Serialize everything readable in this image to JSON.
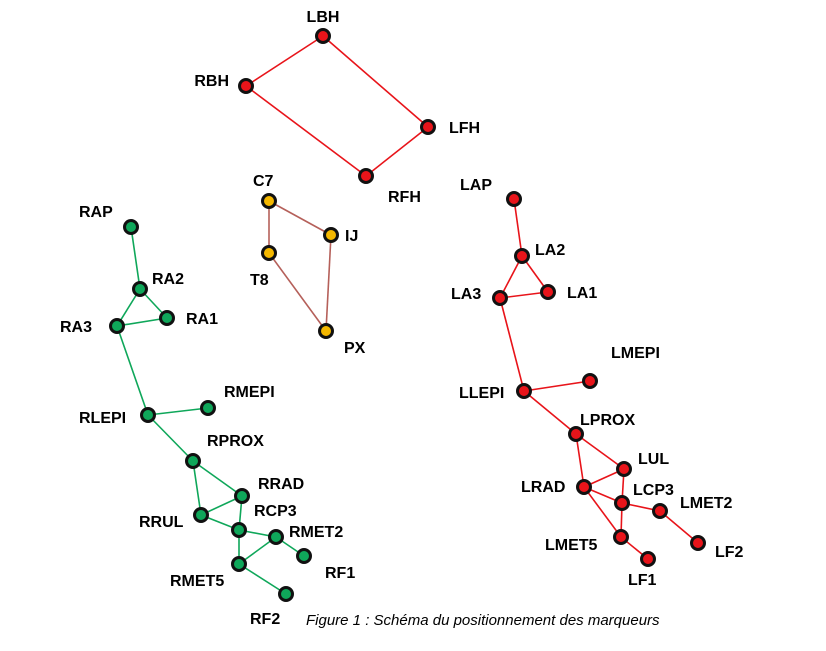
{
  "caption": "Figure 1 : Schéma du positionnement des marqueurs",
  "colors": {
    "head": "#e8141a",
    "trunk": "#f5b800",
    "trunk_edge": "#b5605a",
    "right_leg": "#0fa75a",
    "left_leg": "#e8141a",
    "outline": "#111111"
  },
  "groups": [
    {
      "name": "head",
      "node_color": "#e8141a",
      "edge_color": "#e8141a",
      "nodes": [
        "LBH",
        "RBH",
        "LFH",
        "RFH"
      ],
      "edges": [
        [
          "LBH",
          "RBH"
        ],
        [
          "LBH",
          "LFH"
        ],
        [
          "RBH",
          "RFH"
        ],
        [
          "LFH",
          "RFH"
        ]
      ]
    },
    {
      "name": "trunk",
      "node_color": "#f5b800",
      "edge_color": "#b5605a",
      "nodes": [
        "C7",
        "IJ",
        "T8",
        "PX"
      ],
      "edges": [
        [
          "C7",
          "IJ"
        ],
        [
          "C7",
          "T8"
        ],
        [
          "IJ",
          "PX"
        ],
        [
          "T8",
          "PX"
        ]
      ]
    },
    {
      "name": "right-leg",
      "node_color": "#0fa75a",
      "edge_color": "#0fa75a",
      "nodes": [
        "RAP",
        "RA2",
        "RA1",
        "RA3",
        "RMEPI",
        "RLEPI",
        "RPROX",
        "RRAD",
        "RRUL",
        "RCP3",
        "RMET2",
        "RMET5",
        "RF1",
        "RF2"
      ],
      "edges": [
        [
          "RAP",
          "RA2"
        ],
        [
          "RA2",
          "RA1"
        ],
        [
          "RA2",
          "RA3"
        ],
        [
          "RA3",
          "RA1"
        ],
        [
          "RA3",
          "RLEPI"
        ],
        [
          "RLEPI",
          "RMEPI"
        ],
        [
          "RLEPI",
          "RPROX"
        ],
        [
          "RPROX",
          "RRAD"
        ],
        [
          "RPROX",
          "RRUL"
        ],
        [
          "RRAD",
          "RRUL"
        ],
        [
          "RRAD",
          "RCP3"
        ],
        [
          "RRUL",
          "RCP3"
        ],
        [
          "RCP3",
          "RMET2"
        ],
        [
          "RCP3",
          "RMET5"
        ],
        [
          "RMET2",
          "RF1"
        ],
        [
          "RMET2",
          "RMET5"
        ],
        [
          "RMET5",
          "RF2"
        ]
      ]
    },
    {
      "name": "left-leg",
      "node_color": "#e8141a",
      "edge_color": "#e8141a",
      "nodes": [
        "LAP",
        "LA2",
        "LA1",
        "LA3",
        "LMEPI",
        "LLEPI",
        "LPROX",
        "LUL",
        "LRAD",
        "LCP3",
        "LMET2",
        "LMET5",
        "LF1",
        "LF2"
      ],
      "edges": [
        [
          "LAP",
          "LA2"
        ],
        [
          "LA2",
          "LA1"
        ],
        [
          "LA2",
          "LA3"
        ],
        [
          "LA3",
          "LA1"
        ],
        [
          "LA3",
          "LLEPI"
        ],
        [
          "LLEPI",
          "LMEPI"
        ],
        [
          "LLEPI",
          "LPROX"
        ],
        [
          "LPROX",
          "LUL"
        ],
        [
          "LPROX",
          "LRAD"
        ],
        [
          "LUL",
          "LRAD"
        ],
        [
          "LUL",
          "LCP3"
        ],
        [
          "LRAD",
          "LCP3"
        ],
        [
          "LRAD",
          "LMET5"
        ],
        [
          "LCP3",
          "LMET2"
        ],
        [
          "LCP3",
          "LMET5"
        ],
        [
          "LMET2",
          "LF2"
        ],
        [
          "LMET5",
          "LF1"
        ]
      ]
    }
  ]
}
